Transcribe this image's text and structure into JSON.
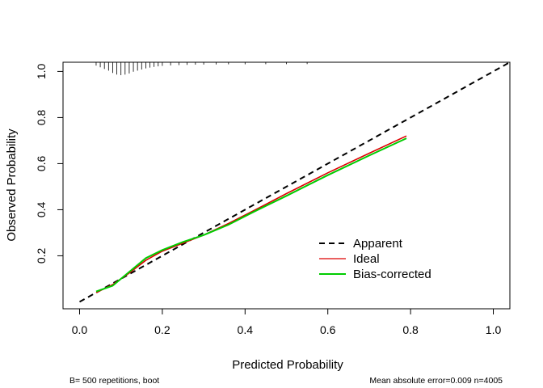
{
  "chart_data": {
    "type": "line",
    "xlabel": "Predicted Probability",
    "ylabel": "Observed Probability",
    "xlim": [
      -0.04,
      1.04
    ],
    "ylim": [
      -0.03,
      1.04
    ],
    "x_ticks": [
      "0.0",
      "0.2",
      "0.4",
      "0.6",
      "0.8",
      "1.0"
    ],
    "y_ticks": [
      "0.2",
      "0.4",
      "0.6",
      "0.8",
      "1.0"
    ],
    "grid": false,
    "legend_position": "bottom-right",
    "series": [
      {
        "name": "Apparent",
        "color": "#000000",
        "style": "dashed",
        "x": [
          0.0,
          1.04
        ],
        "y": [
          0.0,
          1.04
        ]
      },
      {
        "name": "Ideal",
        "color": "#dd0000",
        "style": "solid",
        "x": [
          0.04,
          0.08,
          0.12,
          0.16,
          0.2,
          0.25,
          0.3,
          0.36,
          0.42,
          0.5,
          0.6,
          0.7,
          0.79
        ],
        "y": [
          0.04,
          0.075,
          0.125,
          0.18,
          0.22,
          0.255,
          0.29,
          0.34,
          0.395,
          0.47,
          0.56,
          0.645,
          0.72
        ]
      },
      {
        "name": "Bias-corrected",
        "color": "#00cc00",
        "style": "solid",
        "x": [
          0.04,
          0.08,
          0.12,
          0.16,
          0.2,
          0.25,
          0.3,
          0.36,
          0.42,
          0.5,
          0.6,
          0.7,
          0.79
        ],
        "y": [
          0.045,
          0.07,
          0.13,
          0.19,
          0.225,
          0.26,
          0.29,
          0.335,
          0.39,
          0.46,
          0.55,
          0.635,
          0.71
        ]
      }
    ],
    "rug": {
      "x": [
        0.04,
        0.05,
        0.06,
        0.07,
        0.08,
        0.09,
        0.1,
        0.11,
        0.12,
        0.13,
        0.14,
        0.15,
        0.16,
        0.17,
        0.18,
        0.19,
        0.2,
        0.22,
        0.24,
        0.26,
        0.28,
        0.3,
        0.33,
        0.36,
        0.4,
        0.45,
        0.5,
        0.55
      ],
      "weight": [
        0.15,
        0.3,
        0.45,
        0.6,
        0.8,
        0.95,
        1.0,
        0.95,
        0.85,
        0.7,
        0.6,
        0.5,
        0.4,
        0.33,
        0.27,
        0.22,
        0.18,
        0.14,
        0.11,
        0.09,
        0.07,
        0.06,
        0.05,
        0.04,
        0.04,
        0.03,
        0.03,
        0.02
      ]
    }
  },
  "footnote_left": "B= 500 repetitions, boot",
  "footnote_right": "Mean absolute error=0.009 n=4005"
}
